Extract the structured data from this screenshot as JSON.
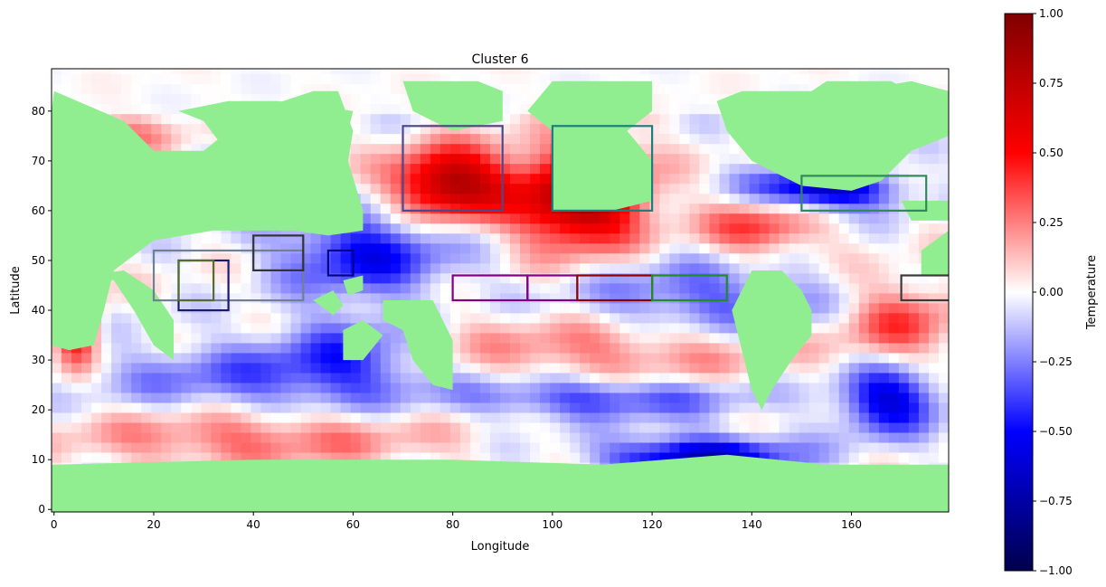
{
  "chart_data": {
    "type": "heatmap",
    "title": "Cluster 6",
    "xlabel": "Longitude",
    "ylabel": "Latitude",
    "xlim": [
      -0.5,
      179.5
    ],
    "ylim": [
      -0.5,
      88.5
    ],
    "xticks": [
      0,
      20,
      40,
      60,
      80,
      100,
      120,
      140,
      160
    ],
    "yticks": [
      0,
      10,
      20,
      30,
      40,
      50,
      60,
      70,
      80
    ],
    "grid": false,
    "land_color": "#90ee90",
    "colorbar": {
      "label": "Temperature",
      "range": [
        -1.0,
        1.0
      ],
      "colormap": "seismic",
      "ticks": [
        "1.00",
        "0.75",
        "0.50",
        "0.25",
        "0.00",
        "−0.25",
        "−0.50",
        "−0.75",
        "−1.00"
      ],
      "tick_values": [
        1.0,
        0.75,
        0.5,
        0.25,
        0.0,
        -0.25,
        -0.5,
        -0.75,
        -1.0
      ]
    },
    "field_features": [
      {
        "x": 80,
        "y": 66,
        "value": 0.85,
        "sx": 8,
        "sy": 5
      },
      {
        "x": 106,
        "y": 63,
        "value": 0.9,
        "sx": 9,
        "sy": 7
      },
      {
        "x": 130,
        "y": 11,
        "value": -0.7,
        "sx": 13,
        "sy": 3
      },
      {
        "x": 168,
        "y": 23,
        "value": -0.6,
        "sx": 7,
        "sy": 5
      },
      {
        "x": 155,
        "y": 65,
        "value": -0.7,
        "sx": 10,
        "sy": 3
      },
      {
        "x": 63,
        "y": 52,
        "value": -0.5,
        "sx": 12,
        "sy": 6
      },
      {
        "x": 142,
        "y": 57,
        "value": 0.4,
        "sx": 8,
        "sy": 4
      },
      {
        "x": 130,
        "y": 42,
        "value": -0.35,
        "sx": 18,
        "sy": 6
      },
      {
        "x": 115,
        "y": 33,
        "value": 0.3,
        "sx": 25,
        "sy": 5
      },
      {
        "x": 110,
        "y": 23,
        "value": -0.4,
        "sx": 20,
        "sy": 3
      },
      {
        "x": 40,
        "y": 15,
        "value": 0.3,
        "sx": 25,
        "sy": 4
      },
      {
        "x": 40,
        "y": 27,
        "value": -0.3,
        "sx": 22,
        "sy": 5
      },
      {
        "x": 5,
        "y": 38,
        "value": 0.6,
        "sx": 3,
        "sy": 6
      },
      {
        "x": 170,
        "y": 38,
        "value": 0.35,
        "sx": 8,
        "sy": 6
      },
      {
        "x": 15,
        "y": 76,
        "value": 0.2,
        "sx": 8,
        "sy": 3
      },
      {
        "x": 60,
        "y": 32,
        "value": -0.3,
        "sx": 10,
        "sy": 6
      }
    ],
    "rectangles": [
      {
        "x0": 70,
        "x1": 90,
        "y0": 60,
        "y1": 77,
        "color": "#4a4a8a"
      },
      {
        "x0": 100,
        "x1": 120,
        "y0": 60,
        "y1": 77,
        "color": "#1a7f7f"
      },
      {
        "x0": 150,
        "x1": 175,
        "y0": 60,
        "y1": 67,
        "color": "#2e8b57"
      },
      {
        "x0": 20,
        "x1": 50,
        "y0": 42,
        "y1": 52,
        "color": "#708090"
      },
      {
        "x0": 25,
        "x1": 35,
        "y0": 40,
        "y1": 50,
        "color": "#191970"
      },
      {
        "x0": 25,
        "x1": 32,
        "y0": 42,
        "y1": 50,
        "color": "#556b2f"
      },
      {
        "x0": 40,
        "x1": 50,
        "y0": 48,
        "y1": 55,
        "color": "#333333"
      },
      {
        "x0": 55,
        "x1": 60,
        "y0": 47,
        "y1": 52,
        "color": "#00008b"
      },
      {
        "x0": 80,
        "x1": 95,
        "y0": 42,
        "y1": 47,
        "color": "#800080"
      },
      {
        "x0": 95,
        "x1": 105,
        "y0": 42,
        "y1": 47,
        "color": "#800080"
      },
      {
        "x0": 105,
        "x1": 120,
        "y0": 42,
        "y1": 47,
        "color": "#8b0000"
      },
      {
        "x0": 120,
        "x1": 135,
        "y0": 42,
        "y1": 47,
        "color": "#228b22"
      },
      {
        "x0": 170,
        "x1": 180,
        "y0": 42,
        "y1": 47,
        "color": "#3a3a3a"
      }
    ]
  }
}
